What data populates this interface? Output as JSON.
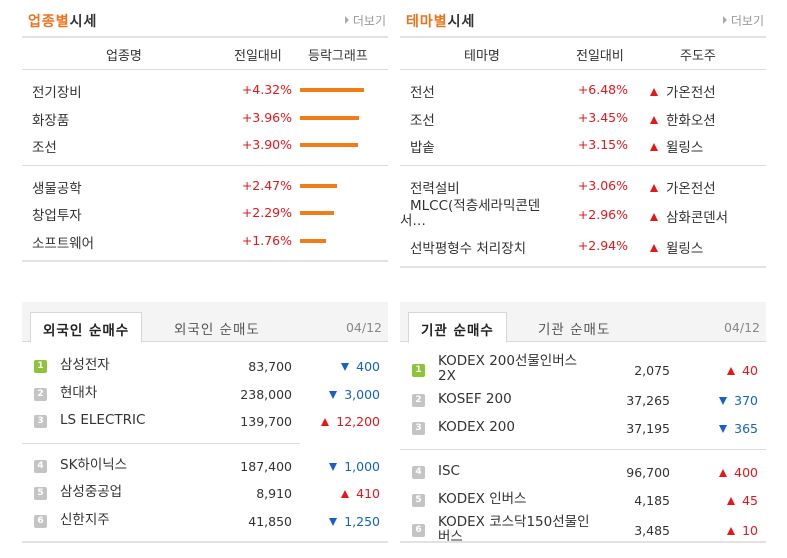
{
  "industry": {
    "title_accent": "업종별",
    "title_rest": "시세",
    "more": "더보기",
    "headers": {
      "name": "업종명",
      "change": "전일대비",
      "graph": "등락그래프"
    },
    "groups": [
      [
        {
          "name": "전기장비",
          "change": "+4.32%",
          "bar": 4.32
        },
        {
          "name": "화장품",
          "change": "+3.96%",
          "bar": 3.96
        },
        {
          "name": "조선",
          "change": "+3.90%",
          "bar": 3.9
        }
      ],
      [
        {
          "name": "생물공학",
          "change": "+2.47%",
          "bar": 2.47
        },
        {
          "name": "창업투자",
          "change": "+2.29%",
          "bar": 2.29
        },
        {
          "name": "소프트웨어",
          "change": "+1.76%",
          "bar": 1.76
        }
      ]
    ]
  },
  "theme": {
    "title_accent": "테마별",
    "title_rest": "시세",
    "more": "더보기",
    "headers": {
      "name": "테마명",
      "change": "전일대비",
      "lead": "주도주"
    },
    "groups": [
      [
        {
          "name": "전선",
          "change": "+6.48%",
          "lead": "가온전선"
        },
        {
          "name": "조선",
          "change": "+3.45%",
          "lead": "한화오션"
        },
        {
          "name": "밥솥",
          "change": "+3.15%",
          "lead": "윌링스"
        }
      ],
      [
        {
          "name": "전력설비",
          "change": "+3.06%",
          "lead": "가온전선"
        },
        {
          "name_line1": "MLCC(적층세라믹콘덴",
          "name_line2": "서…",
          "change": "+2.96%",
          "lead": "삼화콘덴서"
        },
        {
          "name": "선박평형수 처리장치",
          "change": "+2.94%",
          "lead": "윌링스"
        }
      ]
    ]
  },
  "foreign": {
    "tab_active": "외국인 순매수",
    "tab_other": "외국인 순매도",
    "date": "04/12",
    "rows": [
      {
        "rank": "1",
        "name": "삼성전자",
        "price": "83,700",
        "change": "400",
        "dir": "dn"
      },
      {
        "rank": "2",
        "name": "현대차",
        "price": "238,000",
        "change": "3,000",
        "dir": "dn"
      },
      {
        "rank": "3",
        "name": "LS ELECTRIC",
        "price": "139,700",
        "change": "12,200",
        "dir": "up"
      },
      {
        "rank": "4",
        "name": "SK하이닉스",
        "price": "187,400",
        "change": "1,000",
        "dir": "dn"
      },
      {
        "rank": "5",
        "name": "삼성중공업",
        "price": "8,910",
        "change": "410",
        "dir": "up"
      },
      {
        "rank": "6",
        "name": "신한지주",
        "price": "41,850",
        "change": "1,250",
        "dir": "dn"
      }
    ]
  },
  "institution": {
    "tab_active": "기관 순매수",
    "tab_other": "기관 순매도",
    "date": "04/12",
    "rows": [
      {
        "rank": "1",
        "name_line1": "KODEX 200선물인버스",
        "name_line2": "2X",
        "price": "2,075",
        "change": "40",
        "dir": "up"
      },
      {
        "rank": "2",
        "name_line1": "KOSEF 200",
        "name_line2": "",
        "price": "37,265",
        "change": "370",
        "dir": "dn"
      },
      {
        "rank": "3",
        "name_line1": "KODEX 200",
        "name_line2": "",
        "price": "37,195",
        "change": "365",
        "dir": "dn"
      },
      {
        "rank": "4",
        "name_line1": "ISC",
        "name_line2": "",
        "price": "96,700",
        "change": "400",
        "dir": "up"
      },
      {
        "rank": "5",
        "name_line1": "KODEX 인버스",
        "name_line2": "",
        "price": "4,185",
        "change": "45",
        "dir": "up"
      },
      {
        "rank": "6",
        "name_line1": "KODEX 코스닥150선물인",
        "name_line2": "버스",
        "price": "3,485",
        "change": "10",
        "dir": "up"
      }
    ]
  },
  "colors": {
    "accent": "#f0701b",
    "up": "#e8151b",
    "down": "#1560cc",
    "rank_top": "#8ec43a",
    "rank": "#c4c4c4"
  }
}
